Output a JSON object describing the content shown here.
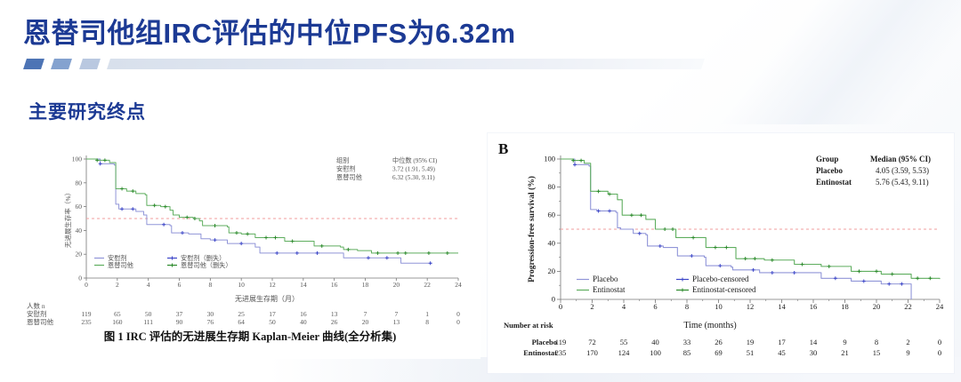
{
  "slide": {
    "title": "恩替司他组IRC评估的中位PFS为6.32m",
    "section_heading": "主要研究终点",
    "accent_color": "#1c3a94"
  },
  "chart_data": [
    {
      "type": "line",
      "subtype": "kaplan-meier-step",
      "caption": "图 1 IRC 评估的无进展生存期 Kaplan-Meier 曲线(全分析集)",
      "xlabel": "无进展生存期（月）",
      "ylabel": "无进展生存率（%）",
      "xlim": [
        0,
        24
      ],
      "ylim": [
        0,
        100
      ],
      "xticks": [
        0,
        2,
        4,
        6,
        8,
        10,
        12,
        14,
        16,
        18,
        20,
        22,
        24
      ],
      "yticks": [
        0,
        20,
        40,
        60,
        80,
        100
      ],
      "grid": false,
      "legend_position": "bottom-left-inside",
      "reference_line": {
        "y": 50,
        "style": "dashed",
        "color": "#f29e9e"
      },
      "median_table": {
        "header": [
          "组别",
          "中位数 (95% CI)"
        ],
        "rows": [
          {
            "group": "安慰剂",
            "median": "3.72 (1.91, 5.49)"
          },
          {
            "group": "恩替司他",
            "median": "6.32 (5.30, 9.11)"
          }
        ]
      },
      "legend": [
        {
          "label": "安慰剂",
          "marker": "line",
          "color": "#9095d8"
        },
        {
          "label": "恩替司他",
          "marker": "line",
          "color": "#5fae5f"
        },
        {
          "label": "安慰剂（删失）",
          "marker": "censor",
          "color": "#3c46c8"
        },
        {
          "label": "恩替司他（删失）",
          "marker": "censor",
          "color": "#2c8a2c"
        }
      ],
      "series": [
        {
          "name": "安慰剂",
          "color": "#9095d8",
          "censor_color": "#3c46c8",
          "steps": [
            [
              0,
              100
            ],
            [
              0.9,
              96
            ],
            [
              1.8,
              95
            ],
            [
              1.9,
              62
            ],
            [
              2.1,
              58
            ],
            [
              3.2,
              56
            ],
            [
              3.7,
              53
            ],
            [
              3.9,
              45
            ],
            [
              5.4,
              44
            ],
            [
              5.5,
              38
            ],
            [
              6.6,
              37
            ],
            [
              7.4,
              33
            ],
            [
              8,
              32
            ],
            [
              9.1,
              29
            ],
            [
              10.9,
              26
            ],
            [
              11.2,
              21
            ],
            [
              16.6,
              17
            ],
            [
              20.3,
              12.5
            ],
            [
              22.3,
              12.5
            ]
          ],
          "censors": [
            0.9,
            2.3,
            3,
            5,
            6.2,
            8.3,
            10,
            12.3,
            13.6,
            14.9,
            18.2,
            19.4,
            22.2
          ]
        },
        {
          "name": "恩替司他",
          "color": "#5fae5f",
          "censor_color": "#2c8a2c",
          "steps": [
            [
              0,
              100
            ],
            [
              0.7,
              99
            ],
            [
              1.5,
              97
            ],
            [
              1.9,
              75
            ],
            [
              2.6,
              73
            ],
            [
              3.2,
              71
            ],
            [
              3.8,
              70
            ],
            [
              3.9,
              61
            ],
            [
              4.8,
              60
            ],
            [
              5.4,
              57
            ],
            [
              5.6,
              53
            ],
            [
              6,
              51
            ],
            [
              6.9,
              50
            ],
            [
              7.3,
              48
            ],
            [
              7.5,
              44
            ],
            [
              9.1,
              43
            ],
            [
              9.2,
              38
            ],
            [
              10,
              37
            ],
            [
              10.9,
              34
            ],
            [
              12.8,
              31
            ],
            [
              14.7,
              27
            ],
            [
              16.4,
              26
            ],
            [
              16.6,
              24
            ],
            [
              17.5,
              23
            ],
            [
              18.4,
              21
            ],
            [
              24,
              21
            ]
          ],
          "censors": [
            0.7,
            1.2,
            2.3,
            3,
            4.4,
            5.1,
            6.5,
            7,
            8.3,
            9.7,
            10.4,
            11.6,
            12.2,
            13.3,
            15.2,
            16.9,
            18.8,
            20.1,
            20.6,
            22.1,
            23.3
          ]
        }
      ],
      "risk_table": {
        "title": "人数 n",
        "times": [
          0,
          2,
          4,
          6,
          8,
          10,
          12,
          14,
          16,
          18,
          20,
          22,
          24
        ],
        "rows": [
          {
            "label": "安慰剂",
            "values": [
              119,
              65,
              50,
              37,
              30,
              25,
              17,
              16,
              13,
              7,
              7,
              1,
              0
            ]
          },
          {
            "label": "恩替司他",
            "values": [
              235,
              160,
              111,
              90,
              76,
              64,
              50,
              40,
              26,
              20,
              13,
              8,
              0
            ]
          }
        ]
      }
    },
    {
      "panel_label": "B",
      "type": "line",
      "subtype": "kaplan-meier-step",
      "caption": "",
      "xlabel": "Time (months)",
      "ylabel": "Progression-free survival (%)",
      "xlim": [
        0,
        24
      ],
      "ylim": [
        0,
        100
      ],
      "xticks": [
        0,
        2,
        4,
        6,
        8,
        10,
        12,
        14,
        16,
        18,
        20,
        22,
        24
      ],
      "yticks": [
        0,
        20,
        40,
        60,
        80,
        100
      ],
      "grid": false,
      "legend_position": "bottom-left-inside",
      "reference_line": {
        "y": 50,
        "style": "dashed",
        "color": "#f29e9e"
      },
      "median_table": {
        "header": [
          "Group",
          "Median (95% CI)"
        ],
        "rows": [
          {
            "group": "Placebo",
            "median": "4.05 (3.59, 5.53)"
          },
          {
            "group": "Entinostat",
            "median": "5.76 (5.43, 9.11)"
          }
        ]
      },
      "legend": [
        {
          "label": "Placebo",
          "marker": "line",
          "color": "#9095d8"
        },
        {
          "label": "Entinostat",
          "marker": "line",
          "color": "#5fae5f"
        },
        {
          "label": "Placebo-censored",
          "marker": "censor",
          "color": "#3c46c8"
        },
        {
          "label": "Entinostat-censored",
          "marker": "censor",
          "color": "#2c8a2c"
        }
      ],
      "series": [
        {
          "name": "Placebo",
          "color": "#9095d8",
          "censor_color": "#3c46c8",
          "steps": [
            [
              0,
              100
            ],
            [
              0.9,
              96
            ],
            [
              1.8,
              95
            ],
            [
              1.9,
              64
            ],
            [
              2.3,
              63
            ],
            [
              3.5,
              62
            ],
            [
              3.6,
              51
            ],
            [
              3.8,
              50
            ],
            [
              4.6,
              47
            ],
            [
              5.4,
              46
            ],
            [
              5.5,
              38
            ],
            [
              6.5,
              37
            ],
            [
              7.4,
              31
            ],
            [
              9.1,
              30
            ],
            [
              9.2,
              24
            ],
            [
              10.8,
              23
            ],
            [
              10.9,
              21
            ],
            [
              12.6,
              19
            ],
            [
              16.5,
              15
            ],
            [
              18.4,
              13
            ],
            [
              20.3,
              11
            ],
            [
              22.2,
              0
            ]
          ],
          "censors": [
            0.9,
            2.4,
            3.1,
            5,
            6.3,
            8.3,
            10.1,
            12.2,
            13.4,
            14.8,
            17.4,
            19.2,
            20.8,
            21.6
          ]
        },
        {
          "name": "Entinostat",
          "color": "#5fae5f",
          "censor_color": "#2c8a2c",
          "steps": [
            [
              0,
              100
            ],
            [
              0.8,
              99
            ],
            [
              1.5,
              97
            ],
            [
              1.9,
              77
            ],
            [
              3,
              75
            ],
            [
              3.6,
              71
            ],
            [
              3.9,
              60
            ],
            [
              5.4,
              57
            ],
            [
              6,
              50
            ],
            [
              7.3,
              44
            ],
            [
              9.2,
              37
            ],
            [
              11.1,
              29
            ],
            [
              12.9,
              28
            ],
            [
              14.8,
              25
            ],
            [
              16.5,
              23.5
            ],
            [
              18.4,
              20
            ],
            [
              20.3,
              18
            ],
            [
              22.2,
              15
            ],
            [
              24,
              14.5
            ]
          ],
          "censors": [
            0.8,
            1.3,
            2.4,
            3.1,
            4.5,
            5.1,
            6.6,
            7.1,
            8.4,
            9.8,
            10.5,
            11.7,
            12.3,
            13.4,
            15.3,
            17,
            18.9,
            20,
            21,
            22.6,
            23.4
          ]
        }
      ],
      "risk_table": {
        "title": "Number at risk",
        "times": [
          0,
          2,
          4,
          6,
          8,
          10,
          12,
          14,
          16,
          18,
          20,
          22,
          24
        ],
        "rows": [
          {
            "label": "Placebo",
            "values": [
              119,
              72,
              55,
              40,
              33,
              26,
              19,
              17,
              14,
              9,
              8,
              2,
              0
            ]
          },
          {
            "label": "Entinostat",
            "values": [
              235,
              170,
              124,
              100,
              85,
              69,
              51,
              45,
              30,
              21,
              15,
              9,
              0
            ]
          }
        ]
      }
    }
  ]
}
